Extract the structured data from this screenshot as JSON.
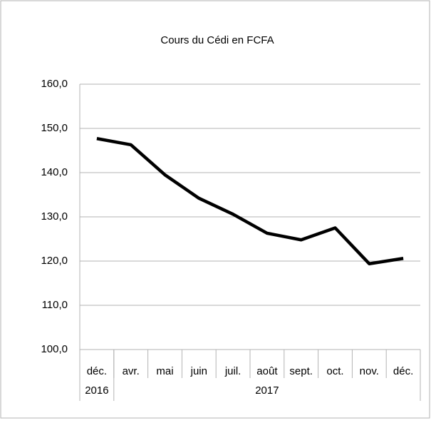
{
  "chart_data": {
    "type": "line",
    "title": "Cours du Cédi en FCFA",
    "categories": [
      "déc.",
      "avr.",
      "mai",
      "juin",
      "juil.",
      "août",
      "sept.",
      "oct.",
      "nov.",
      "déc."
    ],
    "category_groups": [
      {
        "label": "2016",
        "count": 1
      },
      {
        "label": "2017",
        "count": 9
      }
    ],
    "values": [
      147.7,
      146.3,
      139.5,
      134.2,
      130.6,
      126.3,
      124.8,
      127.5,
      119.4,
      120.6
    ],
    "color": "#000000",
    "ylim": [
      100,
      160
    ],
    "yticks": [
      {
        "value": 100,
        "label": "100,0"
      },
      {
        "value": 110,
        "label": "110,0"
      },
      {
        "value": 120,
        "label": "120,0"
      },
      {
        "value": 130,
        "label": "130,0"
      },
      {
        "value": 140,
        "label": "140,0"
      },
      {
        "value": 150,
        "label": "150,0"
      },
      {
        "value": 160,
        "label": "160,0"
      }
    ],
    "grid": true
  }
}
